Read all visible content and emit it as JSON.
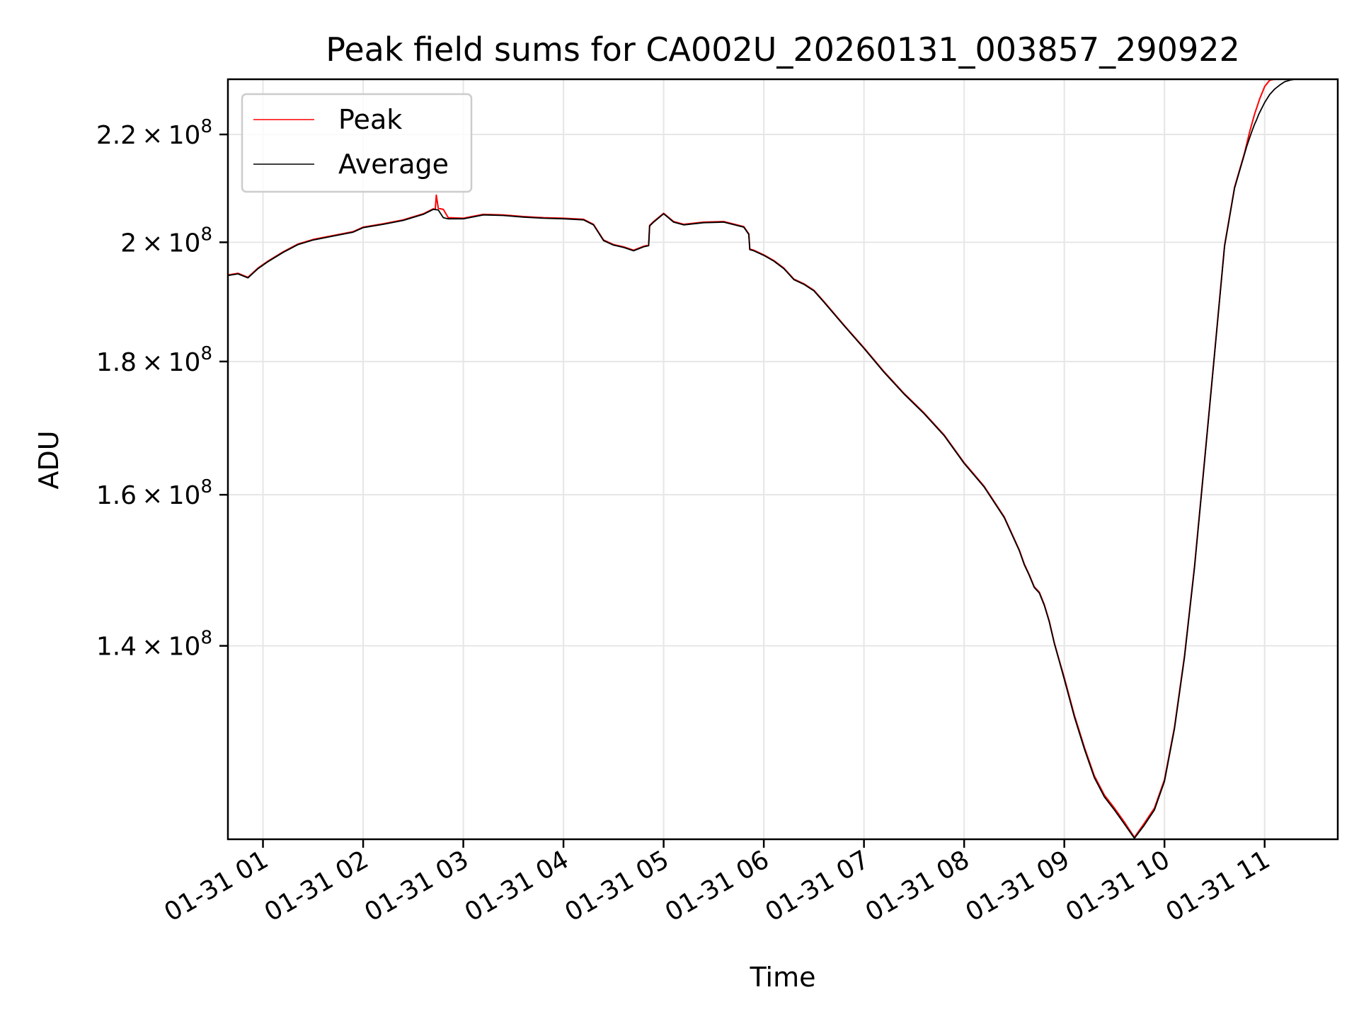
{
  "chart_data": {
    "type": "line",
    "title": "Peak field sums for CA002U_20260131_003857_290922",
    "xlabel": "Time",
    "ylabel": "ADU",
    "y_scale": "log",
    "xlim_hours": [
      0.65,
      11.73
    ],
    "ylim": [
      118000000,
      231000000
    ],
    "grid": true,
    "legend_position": "upper-left",
    "x_ticks": [
      {
        "hours": 1,
        "label": "01-31 01"
      },
      {
        "hours": 2,
        "label": "01-31 02"
      },
      {
        "hours": 3,
        "label": "01-31 03"
      },
      {
        "hours": 4,
        "label": "01-31 04"
      },
      {
        "hours": 5,
        "label": "01-31 05"
      },
      {
        "hours": 6,
        "label": "01-31 06"
      },
      {
        "hours": 7,
        "label": "01-31 07"
      },
      {
        "hours": 8,
        "label": "01-31 08"
      },
      {
        "hours": 9,
        "label": "01-31 09"
      },
      {
        "hours": 10,
        "label": "01-31 10"
      },
      {
        "hours": 11,
        "label": "01-31 11"
      }
    ],
    "y_ticks": [
      {
        "value": 140000000,
        "mantissa": "1.4",
        "base": "10",
        "exponent": "8"
      },
      {
        "value": 160000000,
        "mantissa": "1.6",
        "base": "10",
        "exponent": "8"
      },
      {
        "value": 180000000,
        "mantissa": "1.8",
        "base": "10",
        "exponent": "8"
      },
      {
        "value": 200000000,
        "mantissa": "2",
        "base": "10",
        "exponent": "8"
      },
      {
        "value": 220000000,
        "mantissa": "2.2",
        "base": "10",
        "exponent": "8"
      }
    ],
    "series": [
      {
        "name": "Peak",
        "color": "#ff0000",
        "x_hours": [
          0.65,
          0.75,
          0.85,
          0.95,
          1.05,
          1.2,
          1.35,
          1.5,
          1.7,
          1.9,
          2.0,
          2.2,
          2.4,
          2.6,
          2.7,
          2.72,
          2.73,
          2.75,
          2.8,
          2.85,
          3.0,
          3.2,
          3.4,
          3.6,
          3.8,
          4.0,
          4.2,
          4.3,
          4.4,
          4.5,
          4.6,
          4.7,
          4.8,
          4.85,
          4.86,
          4.9,
          5.0,
          5.1,
          5.2,
          5.4,
          5.6,
          5.8,
          5.85,
          5.86,
          5.9,
          6.0,
          6.1,
          6.2,
          6.3,
          6.4,
          6.5,
          6.6,
          6.8,
          7.0,
          7.2,
          7.4,
          7.6,
          7.8,
          8.0,
          8.2,
          8.4,
          8.55,
          8.6,
          8.65,
          8.7,
          8.75,
          8.8,
          8.85,
          8.9,
          8.95,
          9.0,
          9.1,
          9.2,
          9.3,
          9.4,
          9.5,
          9.6,
          9.7,
          9.8,
          9.9,
          10.0,
          10.1,
          10.2,
          10.3,
          10.4,
          10.5,
          10.6,
          10.7,
          10.8,
          10.85,
          10.9,
          10.95,
          11.0,
          11.05,
          11.1,
          11.15,
          11.2,
          11.25,
          11.3,
          11.35,
          11.4,
          11.45,
          11.5,
          11.55,
          11.6,
          11.65,
          11.7,
          11.73
        ],
        "values": [
          194300000,
          194600000,
          193900000,
          195500000,
          196700000,
          198300000,
          199700000,
          200500000,
          201200000,
          201900000,
          202700000,
          203300000,
          204000000,
          205100000,
          206000000,
          205900000,
          208500000,
          206100000,
          205900000,
          204400000,
          204300000,
          205000000,
          204900000,
          204600000,
          204400000,
          204300000,
          204100000,
          203200000,
          200400000,
          199600000,
          199200000,
          198600000,
          199300000,
          199500000,
          203000000,
          203700000,
          205200000,
          203700000,
          203200000,
          203600000,
          203700000,
          202800000,
          201500000,
          198800000,
          198600000,
          197800000,
          196800000,
          195500000,
          193600000,
          192800000,
          191700000,
          189800000,
          185900000,
          182200000,
          178400000,
          175000000,
          172000000,
          168700000,
          164600000,
          161200000,
          156900000,
          152400000,
          150500000,
          149100000,
          147500000,
          146800000,
          145200000,
          143100000,
          140400000,
          138200000,
          136100000,
          131700000,
          128000000,
          124800000,
          122700000,
          121300000,
          119800000,
          118200000,
          119700000,
          121300000,
          124400000,
          130300000,
          138800000,
          150200000,
          165000000,
          181300000,
          199500000,
          210000000,
          216500000,
          220500000,
          224000000,
          227000000,
          229500000,
          230800000,
          231000000,
          231000000,
          231000000,
          231000000,
          231000000,
          231000000,
          231000000,
          231000000,
          231000000,
          231000000,
          231000000,
          231000000,
          231000000,
          231000000
        ]
      },
      {
        "name": "Average",
        "color": "#000000",
        "x_hours": [
          0.65,
          0.75,
          0.85,
          0.95,
          1.05,
          1.2,
          1.35,
          1.5,
          1.7,
          1.9,
          2.0,
          2.2,
          2.4,
          2.6,
          2.7,
          2.75,
          2.8,
          2.85,
          3.0,
          3.2,
          3.4,
          3.6,
          3.8,
          4.0,
          4.2,
          4.3,
          4.4,
          4.5,
          4.6,
          4.7,
          4.8,
          4.85,
          4.86,
          4.9,
          5.0,
          5.1,
          5.2,
          5.4,
          5.6,
          5.8,
          5.85,
          5.86,
          5.9,
          6.0,
          6.1,
          6.2,
          6.3,
          6.4,
          6.5,
          6.6,
          6.8,
          7.0,
          7.2,
          7.4,
          7.6,
          7.8,
          8.0,
          8.2,
          8.4,
          8.55,
          8.6,
          8.65,
          8.7,
          8.75,
          8.8,
          8.85,
          8.9,
          8.95,
          9.0,
          9.1,
          9.2,
          9.3,
          9.4,
          9.5,
          9.6,
          9.7,
          9.8,
          9.9,
          10.0,
          10.1,
          10.2,
          10.3,
          10.4,
          10.5,
          10.6,
          10.7,
          10.8,
          10.82,
          10.84,
          10.86,
          10.88,
          10.9,
          10.92,
          10.94,
          10.96,
          10.98,
          11.0,
          11.05,
          11.1,
          11.15,
          11.2,
          11.25,
          11.3,
          11.35,
          11.4,
          11.45,
          11.5,
          11.55,
          11.6,
          11.65,
          11.7,
          11.73
        ],
        "values": [
          194200000,
          194500000,
          193800000,
          195400000,
          196600000,
          198200000,
          199600000,
          200400000,
          201100000,
          201800000,
          202600000,
          203200000,
          203900000,
          205000000,
          205900000,
          205800000,
          204400000,
          204200000,
          204200000,
          204900000,
          204800000,
          204500000,
          204300000,
          204200000,
          204000000,
          203100000,
          200300000,
          199500000,
          199100000,
          198500000,
          199200000,
          199400000,
          202900000,
          203600000,
          205100000,
          203600000,
          203100000,
          203500000,
          203600000,
          202700000,
          201400000,
          198700000,
          198500000,
          197700000,
          196700000,
          195400000,
          193500000,
          192700000,
          191600000,
          189700000,
          185800000,
          182100000,
          178300000,
          174900000,
          171900000,
          168600000,
          164500000,
          161100000,
          156800000,
          152300000,
          150400000,
          149000000,
          147400000,
          146700000,
          145100000,
          143000000,
          140300000,
          138100000,
          135900000,
          131500000,
          127800000,
          124600000,
          122500000,
          121100000,
          119600000,
          118100000,
          119500000,
          121100000,
          124200000,
          130100000,
          138600000,
          150000000,
          164800000,
          181100000,
          199300000,
          209800000,
          216300000,
          217600000,
          218800000,
          219900000,
          221000000,
          222000000,
          222900000,
          223900000,
          224700000,
          225500000,
          226300000,
          227900000,
          229000000,
          229800000,
          230500000,
          230800000,
          231000000,
          231000000,
          231000000,
          231000000,
          231000000,
          231000000,
          231000000,
          231000000,
          231000000,
          231000000
        ]
      }
    ]
  }
}
